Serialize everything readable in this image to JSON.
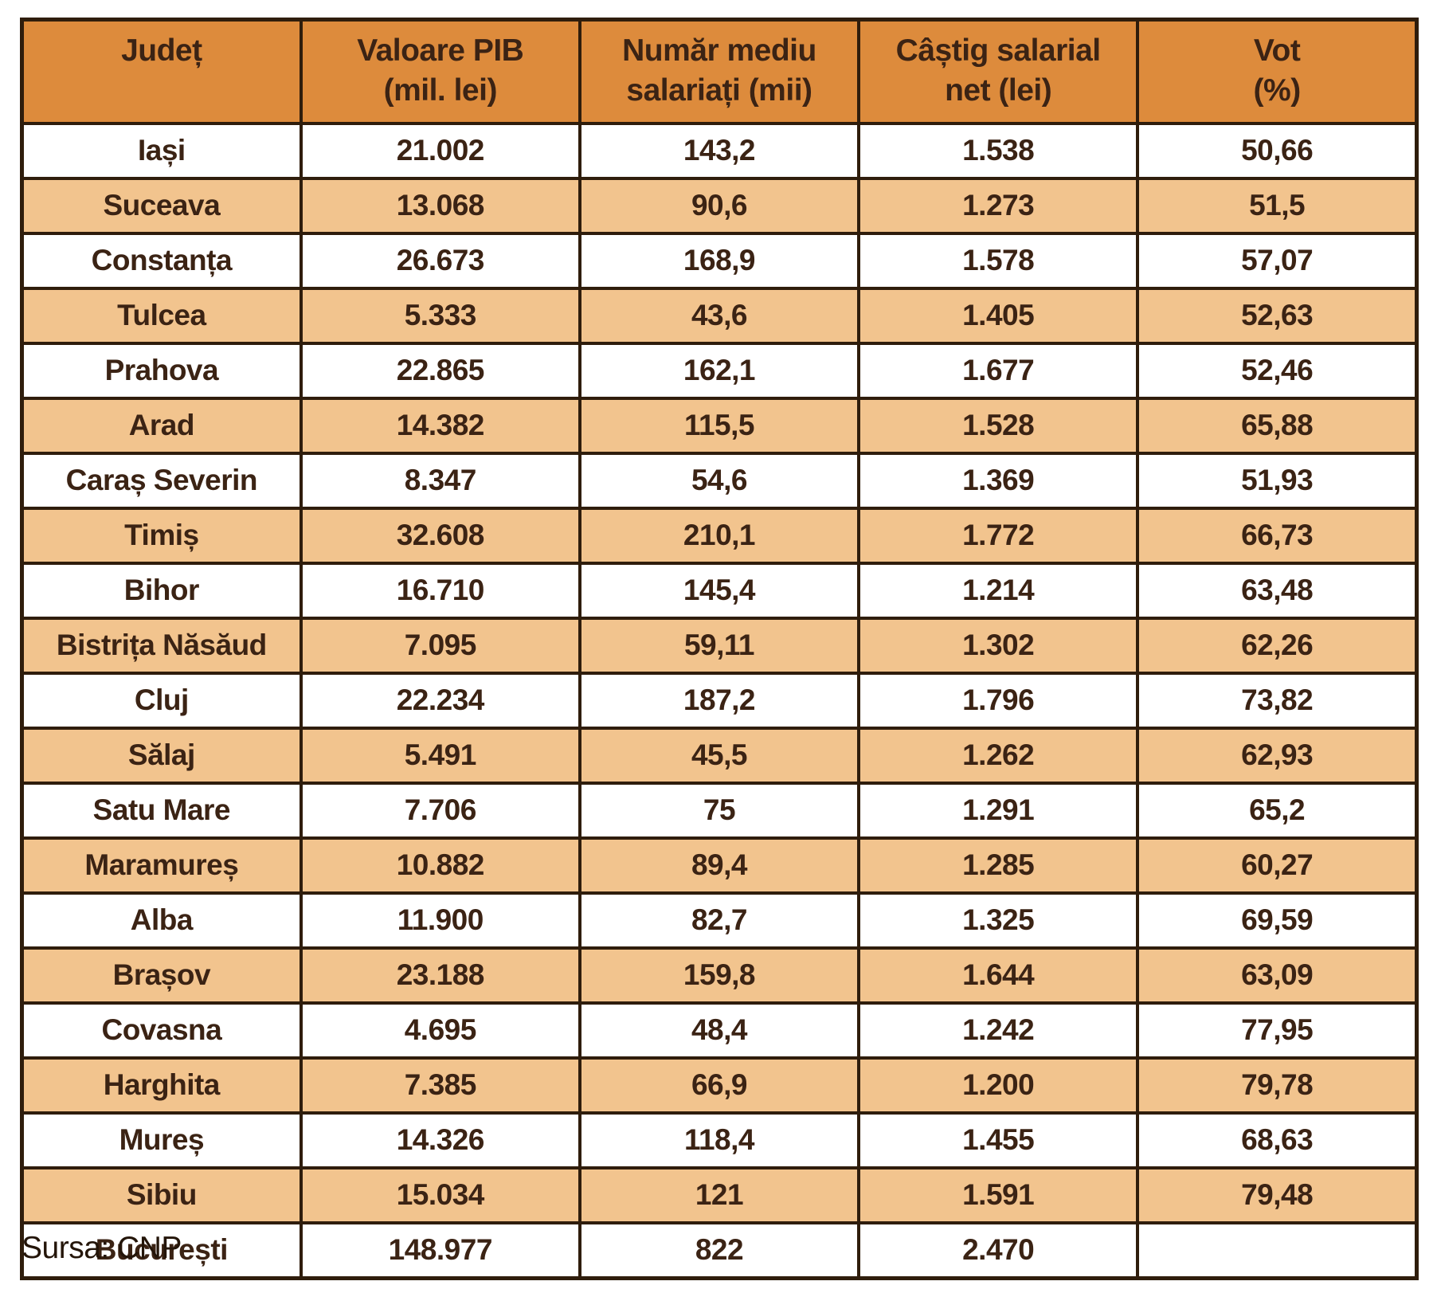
{
  "chart_data": {
    "type": "table",
    "columns": [
      [
        "Județ"
      ],
      [
        "Valoare PIB",
        "(mil. lei)"
      ],
      [
        "Număr mediu",
        "salariați (mii)"
      ],
      [
        "Câștig salarial",
        "net (lei)"
      ],
      [
        "Vot",
        "(%)"
      ]
    ],
    "rows": [
      [
        "Iași",
        "21.002",
        "143,2",
        "1.538",
        "50,66"
      ],
      [
        "Suceava",
        "13.068",
        "90,6",
        "1.273",
        "51,5"
      ],
      [
        "Constanța",
        "26.673",
        "168,9",
        "1.578",
        "57,07"
      ],
      [
        "Tulcea",
        "5.333",
        "43,6",
        "1.405",
        "52,63"
      ],
      [
        "Prahova",
        "22.865",
        "162,1",
        "1.677",
        "52,46"
      ],
      [
        "Arad",
        "14.382",
        "115,5",
        "1.528",
        "65,88"
      ],
      [
        "Caraș Severin",
        "8.347",
        "54,6",
        "1.369",
        "51,93"
      ],
      [
        "Timiș",
        "32.608",
        "210,1",
        "1.772",
        "66,73"
      ],
      [
        "Bihor",
        "16.710",
        "145,4",
        "1.214",
        "63,48"
      ],
      [
        "Bistrița Năsăud",
        "7.095",
        "59,11",
        "1.302",
        "62,26"
      ],
      [
        "Cluj",
        "22.234",
        "187,2",
        "1.796",
        "73,82"
      ],
      [
        "Sălaj",
        "5.491",
        "45,5",
        "1.262",
        "62,93"
      ],
      [
        "Satu Mare",
        "7.706",
        "75",
        "1.291",
        "65,2"
      ],
      [
        "Maramureș",
        "10.882",
        "89,4",
        "1.285",
        "60,27"
      ],
      [
        "Alba",
        "11.900",
        "82,7",
        "1.325",
        "69,59"
      ],
      [
        "Brașov",
        "23.188",
        "159,8",
        "1.644",
        "63,09"
      ],
      [
        "Covasna",
        "4.695",
        "48,4",
        "1.242",
        "77,95"
      ],
      [
        "Harghita",
        "7.385",
        "66,9",
        "1.200",
        "79,78"
      ],
      [
        "Mureș",
        "14.326",
        "118,4",
        "1.455",
        "68,63"
      ],
      [
        "Sibiu",
        "15.034",
        "121",
        "1.591",
        "79,48"
      ],
      [
        "București",
        "148.977",
        "822",
        "2.470",
        ""
      ]
    ],
    "source": "Sursa: CNP",
    "layout": {
      "grid": true,
      "alternating_rows": true,
      "first_data_row_background": "white"
    },
    "colors": {
      "header_background": "#DD8B3C",
      "alternate_row_background": "#F2C48E",
      "row_background": "#FFFFFF",
      "border": "#2F1D0C",
      "text": "#3B2314"
    }
  }
}
